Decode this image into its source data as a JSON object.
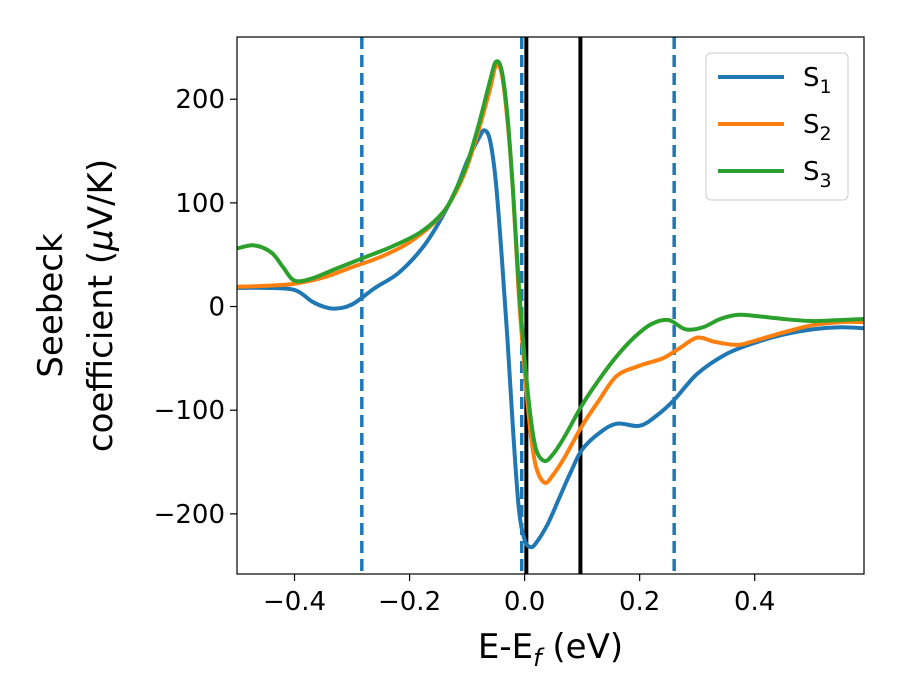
{
  "chart_data": {
    "type": "line",
    "xlabel": {
      "main": "E-E",
      "sub": "f",
      "suffix": " (eV)"
    },
    "ylabel": {
      "line1": "Seebeck",
      "line2_pre": "coefficient  (",
      "mu": "μ",
      "line2_post": "V/K)"
    },
    "xlim": [
      -0.5,
      0.59
    ],
    "ylim": [
      -258,
      260
    ],
    "xticks": [
      {
        "value": -0.4,
        "label": "−0.4"
      },
      {
        "value": -0.2,
        "label": "−0.2"
      },
      {
        "value": 0.0,
        "label": "0.0"
      },
      {
        "value": 0.2,
        "label": "0.2"
      },
      {
        "value": 0.4,
        "label": "0.4"
      }
    ],
    "yticks": [
      {
        "value": -200,
        "label": "−200"
      },
      {
        "value": -100,
        "label": "−100"
      },
      {
        "value": 0,
        "label": "0"
      },
      {
        "value": 100,
        "label": "100"
      },
      {
        "value": 200,
        "label": "200"
      }
    ],
    "grid": false,
    "legend_position": "top-right",
    "vertical_lines": [
      {
        "x": -0.283,
        "style": "dashed",
        "color": "#1f77b4"
      },
      {
        "x": -0.005,
        "style": "dashed",
        "color": "#1f77b4"
      },
      {
        "x": 0.26,
        "style": "dashed",
        "color": "#1f77b4"
      },
      {
        "x": 0.003,
        "style": "solid",
        "color": "#000000"
      },
      {
        "x": 0.097,
        "style": "solid",
        "color": "#000000"
      }
    ],
    "series": [
      {
        "name": {
          "main": "S",
          "sub": "1"
        },
        "color": "#1f77b4",
        "points": [
          [
            -0.5,
            18
          ],
          [
            -0.45,
            18
          ],
          [
            -0.4,
            16
          ],
          [
            -0.37,
            5
          ],
          [
            -0.35,
            0
          ],
          [
            -0.33,
            -2
          ],
          [
            -0.3,
            2
          ],
          [
            -0.26,
            18
          ],
          [
            -0.22,
            32
          ],
          [
            -0.18,
            55
          ],
          [
            -0.15,
            80
          ],
          [
            -0.12,
            112
          ],
          [
            -0.1,
            140
          ],
          [
            -0.08,
            162
          ],
          [
            -0.07,
            170
          ],
          [
            -0.06,
            160
          ],
          [
            -0.05,
            120
          ],
          [
            -0.04,
            50
          ],
          [
            -0.03,
            -30
          ],
          [
            -0.02,
            -120
          ],
          [
            -0.01,
            -195
          ],
          [
            0.0,
            -225
          ],
          [
            0.01,
            -232
          ],
          [
            0.02,
            -228
          ],
          [
            0.04,
            -210
          ],
          [
            0.06,
            -185
          ],
          [
            0.08,
            -160
          ],
          [
            0.1,
            -138
          ],
          [
            0.13,
            -122
          ],
          [
            0.16,
            -113
          ],
          [
            0.2,
            -115
          ],
          [
            0.23,
            -105
          ],
          [
            0.26,
            -90
          ],
          [
            0.3,
            -65
          ],
          [
            0.35,
            -46
          ],
          [
            0.4,
            -35
          ],
          [
            0.45,
            -27
          ],
          [
            0.5,
            -22
          ],
          [
            0.55,
            -20
          ],
          [
            0.59,
            -21
          ]
        ]
      },
      {
        "name": {
          "main": "S",
          "sub": "2"
        },
        "color": "#ff7f0e",
        "points": [
          [
            -0.5,
            19
          ],
          [
            -0.45,
            20
          ],
          [
            -0.4,
            22
          ],
          [
            -0.35,
            28
          ],
          [
            -0.3,
            38
          ],
          [
            -0.25,
            48
          ],
          [
            -0.2,
            62
          ],
          [
            -0.15,
            85
          ],
          [
            -0.12,
            110
          ],
          [
            -0.1,
            135
          ],
          [
            -0.08,
            170
          ],
          [
            -0.06,
            210
          ],
          [
            -0.05,
            232
          ],
          [
            -0.04,
            225
          ],
          [
            -0.03,
            180
          ],
          [
            -0.02,
            110
          ],
          [
            -0.01,
            10
          ],
          [
            0.0,
            -60
          ],
          [
            0.01,
            -120
          ],
          [
            0.02,
            -155
          ],
          [
            0.035,
            -170
          ],
          [
            0.05,
            -162
          ],
          [
            0.07,
            -145
          ],
          [
            0.1,
            -115
          ],
          [
            0.13,
            -90
          ],
          [
            0.16,
            -67
          ],
          [
            0.2,
            -57
          ],
          [
            0.24,
            -50
          ],
          [
            0.27,
            -40
          ],
          [
            0.3,
            -30
          ],
          [
            0.33,
            -34
          ],
          [
            0.37,
            -37
          ],
          [
            0.4,
            -33
          ],
          [
            0.45,
            -25
          ],
          [
            0.5,
            -18
          ],
          [
            0.55,
            -15
          ],
          [
            0.59,
            -15
          ]
        ]
      },
      {
        "name": {
          "main": "S",
          "sub": "3"
        },
        "color": "#2ca02c",
        "points": [
          [
            -0.5,
            56
          ],
          [
            -0.47,
            59
          ],
          [
            -0.44,
            52
          ],
          [
            -0.42,
            38
          ],
          [
            -0.4,
            25
          ],
          [
            -0.37,
            27
          ],
          [
            -0.33,
            36
          ],
          [
            -0.28,
            47
          ],
          [
            -0.23,
            58
          ],
          [
            -0.18,
            72
          ],
          [
            -0.14,
            92
          ],
          [
            -0.12,
            112
          ],
          [
            -0.1,
            138
          ],
          [
            -0.08,
            175
          ],
          [
            -0.06,
            218
          ],
          [
            -0.05,
            236
          ],
          [
            -0.04,
            228
          ],
          [
            -0.03,
            185
          ],
          [
            -0.02,
            110
          ],
          [
            -0.01,
            20
          ],
          [
            0.0,
            -50
          ],
          [
            0.01,
            -105
          ],
          [
            0.02,
            -138
          ],
          [
            0.035,
            -149
          ],
          [
            0.05,
            -142
          ],
          [
            0.07,
            -125
          ],
          [
            0.1,
            -95
          ],
          [
            0.13,
            -70
          ],
          [
            0.16,
            -48
          ],
          [
            0.19,
            -30
          ],
          [
            0.22,
            -17
          ],
          [
            0.25,
            -13
          ],
          [
            0.28,
            -22
          ],
          [
            0.31,
            -20
          ],
          [
            0.34,
            -12
          ],
          [
            0.37,
            -8
          ],
          [
            0.4,
            -9
          ],
          [
            0.45,
            -12
          ],
          [
            0.5,
            -14
          ],
          [
            0.55,
            -13
          ],
          [
            0.59,
            -12
          ]
        ]
      }
    ]
  }
}
